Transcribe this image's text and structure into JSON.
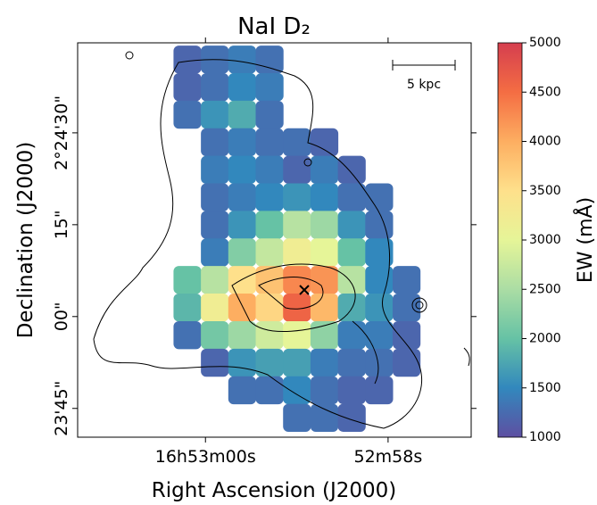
{
  "chart_data": {
    "type": "heatmap",
    "title": "NaI D₂",
    "x_label": "Right Ascension (J2000)",
    "y_label": "Declination (J2000)",
    "xlim": [
      61.4,
      57.09
    ],
    "ylim": [
      -19.7,
      44.7
    ],
    "xticks": [
      {
        "value": 60,
        "label": "16h53m00s"
      },
      {
        "value": 58,
        "label": "52m58s"
      }
    ],
    "yticks": [
      {
        "value": 30,
        "label": "2°24'30\""
      },
      {
        "value": 15,
        "label": "15\""
      },
      {
        "value": 0,
        "label": "00\""
      },
      {
        "value": -15,
        "label": "23'45\""
      }
    ],
    "x": [
      60.2,
      59.9,
      59.6,
      59.3,
      59.0,
      58.7,
      58.4,
      58.1,
      57.8
    ],
    "y": [
      42,
      37.5,
      33,
      28.5,
      24,
      19.5,
      15,
      10.5,
      6,
      1.5,
      -3,
      -7.5,
      -12,
      -16.5
    ],
    "values": [
      [
        1200,
        1300,
        1400,
        1300,
        null,
        null,
        null,
        null,
        null
      ],
      [
        1200,
        1300,
        1500,
        1400,
        null,
        null,
        null,
        null,
        null
      ],
      [
        1300,
        1600,
        1800,
        1300,
        null,
        null,
        null,
        null,
        null
      ],
      [
        null,
        1300,
        1400,
        1300,
        1300,
        1200,
        null,
        null,
        null
      ],
      [
        null,
        1400,
        1500,
        1400,
        1200,
        1400,
        1200,
        null,
        null
      ],
      [
        null,
        1300,
        1400,
        1500,
        1600,
        1500,
        1300,
        1300,
        null
      ],
      [
        null,
        1300,
        1600,
        2000,
        2600,
        2400,
        1600,
        1300,
        null
      ],
      [
        null,
        1400,
        2200,
        2700,
        3200,
        3000,
        2000,
        1500,
        null
      ],
      [
        2000,
        2600,
        3500,
        3800,
        4300,
        4200,
        2600,
        1500,
        1300
      ],
      [
        1900,
        3200,
        4000,
        3600,
        4600,
        3900,
        1800,
        1600,
        1300
      ],
      [
        1300,
        2100,
        2400,
        2800,
        3000,
        2300,
        1400,
        1400,
        1200
      ],
      [
        null,
        1200,
        1600,
        1700,
        1700,
        1400,
        1300,
        1300,
        1200
      ],
      [
        null,
        null,
        1300,
        1300,
        1500,
        1300,
        1200,
        1200,
        null
      ],
      [
        null,
        null,
        null,
        null,
        1300,
        1300,
        1200,
        null,
        null
      ]
    ],
    "scalebar_label": "5 kpc",
    "colorbar": {
      "label": "EW (mÅ)",
      "lim": [
        1000,
        5000
      ],
      "ticks": [
        1000,
        1500,
        2000,
        2500,
        3000,
        3500,
        4000,
        4500,
        5000
      ]
    }
  }
}
